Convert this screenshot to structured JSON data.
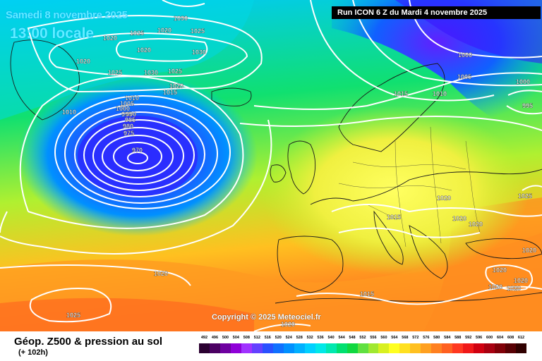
{
  "header": {
    "date": "Samedi 8 novembre 2025",
    "time": "13:00 locale",
    "run": "Run ICON 6 Z du Mardi 4 novembre 2025"
  },
  "copyright": "Copyright © 2025 Meteociel.fr",
  "footer": {
    "title": "Géop. Z500 & pression au sol",
    "subtitle": "(+ 102h)"
  },
  "legend": {
    "labels": [
      "492",
      "496",
      "500",
      "504",
      "508",
      "512",
      "516",
      "520",
      "524",
      "528",
      "532",
      "536",
      "540",
      "544",
      "548",
      "552",
      "556",
      "560",
      "564",
      "568",
      "572",
      "576",
      "580",
      "584",
      "588",
      "592",
      "596",
      "600",
      "604",
      "608",
      "612"
    ],
    "colors": [
      "#2a0030",
      "#4b0062",
      "#6e00a0",
      "#8f00d8",
      "#a032ff",
      "#6440ff",
      "#2a50ff",
      "#1070ff",
      "#0090ff",
      "#00b0ff",
      "#00d0ff",
      "#00e8e8",
      "#00e8b0",
      "#00e070",
      "#10d840",
      "#60e040",
      "#a0e830",
      "#d8f020",
      "#ffff20",
      "#ffe020",
      "#ffc020",
      "#ffa020",
      "#ff8020",
      "#ff6020",
      "#ff3820",
      "#f01818",
      "#d00010",
      "#a80010",
      "#800008",
      "#580004",
      "#300000"
    ]
  },
  "isobars": [
    {
      "label": "1030"
    },
    {
      "label": "1020"
    },
    {
      "label": "1025"
    },
    {
      "label": "1020"
    },
    {
      "label": "1025"
    },
    {
      "label": "1020"
    },
    {
      "label": "1030"
    },
    {
      "label": "1020"
    },
    {
      "label": "1025"
    },
    {
      "label": "1030"
    },
    {
      "label": "1025"
    },
    {
      "label": "1020"
    },
    {
      "label": "1015"
    },
    {
      "label": "1010"
    },
    {
      "label": "1005"
    },
    {
      "label": "1000"
    },
    {
      "label": "995"
    },
    {
      "label": "990"
    },
    {
      "label": "985"
    },
    {
      "label": "980"
    },
    {
      "label": "975"
    },
    {
      "label": "970"
    },
    {
      "label": "1010"
    },
    {
      "label": "1015"
    },
    {
      "label": "1010"
    },
    {
      "label": "1005"
    },
    {
      "label": "1000"
    },
    {
      "label": "1000"
    },
    {
      "label": "995"
    },
    {
      "label": "1020"
    },
    {
      "label": "1020"
    },
    {
      "label": "1020"
    },
    {
      "label": "1015"
    },
    {
      "label": "1020"
    },
    {
      "label": "1020"
    },
    {
      "label": "1020"
    },
    {
      "label": "1020"
    },
    {
      "label": "1020"
    },
    {
      "label": "1015"
    },
    {
      "label": "1020"
    },
    {
      "label": "1025"
    },
    {
      "label": "1020"
    },
    {
      "label": "1025"
    }
  ]
}
